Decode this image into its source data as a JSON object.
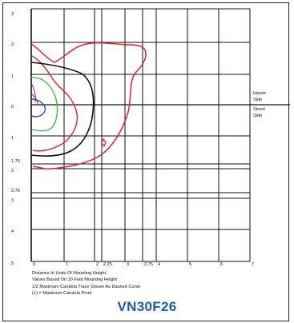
{
  "y_labels": [
    "3",
    "2",
    "1",
    "0",
    "1",
    "1.75",
    "2",
    "2.75",
    "3",
    "4",
    "5"
  ],
  "x_labels": [
    "0",
    "1",
    "2",
    "2.25",
    "3",
    "3.75",
    "4",
    "5",
    "6",
    "7"
  ],
  "side_labels": [
    "House",
    "Side",
    "Street",
    "Side"
  ],
  "notes": [
    "Distance In Units Of Mounting Height",
    "Values Based On 10 Foot Mounting Height",
    "1/2 Maximum Candela Trace Shown As Dashed Curve",
    "(+) = Maximum Candela Point"
  ],
  "model": "VN30F26",
  "colors": {
    "red": "#e2232a",
    "black": "#111111",
    "green": "#3cb94a",
    "blue": "#2c4fb0",
    "purple": "#6a2a8a",
    "title": "#1a5ea8"
  }
}
